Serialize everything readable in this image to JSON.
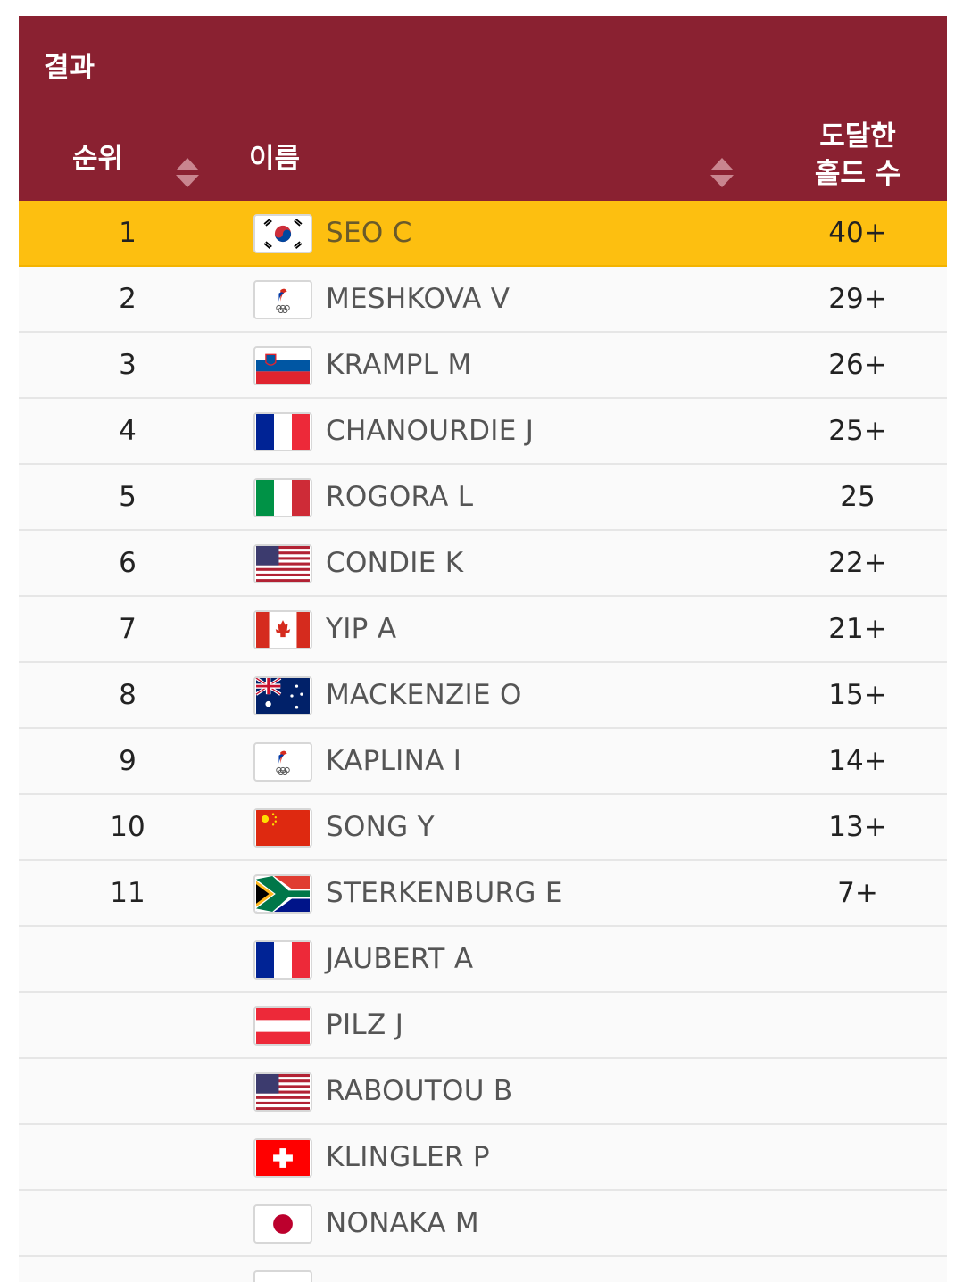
{
  "header": {
    "title": "결과",
    "col_rank": "순위",
    "col_name": "이름",
    "col_holds_line1": "도달한",
    "col_holds_line2": "홀드 수"
  },
  "rows": [
    {
      "rank": "1",
      "flag": "kor-flag",
      "name": "SEO C",
      "holds": "40+",
      "highlight": true
    },
    {
      "rank": "2",
      "flag": "roc-flag",
      "name": "MESHKOVA V",
      "holds": "29+"
    },
    {
      "rank": "3",
      "flag": "slo-flag",
      "name": "KRAMPL M",
      "holds": "26+"
    },
    {
      "rank": "4",
      "flag": "fra-flag",
      "name": "CHANOURDIE J",
      "holds": "25+"
    },
    {
      "rank": "5",
      "flag": "ita-flag",
      "name": "ROGORA L",
      "holds": "25"
    },
    {
      "rank": "6",
      "flag": "usa-flag",
      "name": "CONDIE K",
      "holds": "22+"
    },
    {
      "rank": "7",
      "flag": "can-flag",
      "name": "YIP A",
      "holds": "21+"
    },
    {
      "rank": "8",
      "flag": "aus-flag",
      "name": "MACKENZIE O",
      "holds": "15+"
    },
    {
      "rank": "9",
      "flag": "roc-flag",
      "name": "KAPLINA I",
      "holds": "14+"
    },
    {
      "rank": "10",
      "flag": "chn-flag",
      "name": "SONG Y",
      "holds": "13+"
    },
    {
      "rank": "11",
      "flag": "rsa-flag",
      "name": "STERKENBURG E",
      "holds": "7+"
    },
    {
      "rank": "",
      "flag": "fra-flag",
      "name": "JAUBERT A",
      "holds": ""
    },
    {
      "rank": "",
      "flag": "aut-flag",
      "name": "PILZ J",
      "holds": ""
    },
    {
      "rank": "",
      "flag": "usa-flag",
      "name": "RABOUTOU B",
      "holds": ""
    },
    {
      "rank": "",
      "flag": "sui-flag",
      "name": "KLINGLER P",
      "holds": ""
    },
    {
      "rank": "",
      "flag": "jpn-flag",
      "name": "NONAKA M",
      "holds": ""
    }
  ],
  "colors": {
    "header_bg": "#8a2131",
    "highlight_bg": "#fdbf10"
  }
}
